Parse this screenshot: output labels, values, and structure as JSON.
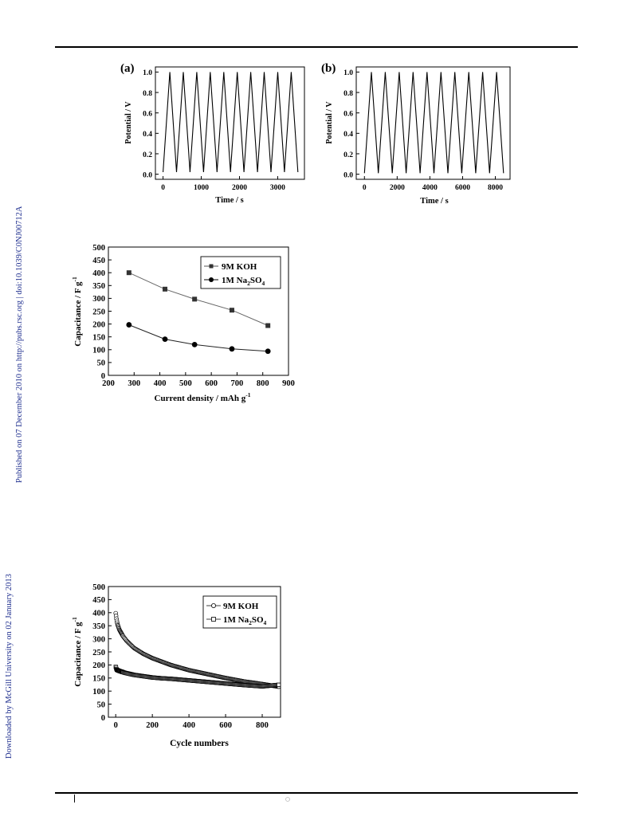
{
  "side_notice": {
    "line1": "Downloaded by McGill University on 02 January 2013",
    "line2": "Published on 07 December 2010 on http://pubs.rsc.org | doi:10.1039/C0NJ00712A"
  },
  "figures": {
    "gcd_a": {
      "panel_label": "(a)",
      "xlabel": "Time / s",
      "ylabel": "Potential / V",
      "xticks": [
        "0",
        "1000",
        "2000",
        "3000"
      ],
      "yticks": [
        "0.0",
        "0.2",
        "0.4",
        "0.6",
        "0.8",
        "1.0"
      ]
    },
    "gcd_b": {
      "panel_label": "(b)",
      "xlabel": "Time / s",
      "ylabel": "Potential / V",
      "xticks": [
        "0",
        "2000",
        "4000",
        "6000",
        "8000"
      ],
      "yticks": [
        "0.0",
        "0.2",
        "0.4",
        "0.6",
        "0.8",
        "1.0"
      ]
    },
    "rate": {
      "xlabel": "Current density / mAh g",
      "xlabel_sup": "-1",
      "ylabel": "Capacitance / F g",
      "ylabel_sup": "-1",
      "xticks": [
        "200",
        "300",
        "400",
        "500",
        "600",
        "700",
        "800",
        "900"
      ],
      "yticks": [
        "0",
        "50",
        "100",
        "150",
        "200",
        "250",
        "300",
        "350",
        "400",
        "450",
        "500"
      ],
      "legend": {
        "koh": "9M KOH",
        "naso_a": "1M Na",
        "naso_sub1": "2",
        "naso_b": "SO",
        "naso_sub2": "4"
      }
    },
    "cycle": {
      "xlabel": "Cycle numbers",
      "ylabel": "Capacitance / F g",
      "ylabel_sup": "-1",
      "xticks": [
        "0",
        "200",
        "400",
        "600",
        "800"
      ],
      "yticks": [
        "0",
        "50",
        "100",
        "150",
        "200",
        "250",
        "300",
        "350",
        "400",
        "450",
        "500"
      ],
      "legend": {
        "koh": "9M KOH",
        "naso_a": "1M Na",
        "naso_sub1": "2",
        "naso_b": "SO",
        "naso_sub2": "4"
      }
    }
  },
  "chart_data": [
    {
      "type": "line",
      "panel": "(a)",
      "xlabel": "Time / s",
      "ylabel": "Potential / V",
      "xlim": [
        -200,
        3700
      ],
      "ylim": [
        -0.05,
        1.05
      ],
      "cycles": 10,
      "t_start": 0,
      "t_end": 3530,
      "v_min": 0.02,
      "v_max": 1.0
    },
    {
      "type": "line",
      "panel": "(b)",
      "xlabel": "Time / s",
      "ylabel": "Potential / V",
      "xlim": [
        -500,
        8900
      ],
      "ylim": [
        -0.05,
        1.05
      ],
      "cycles": 10,
      "t_start": 0,
      "t_end": 8500,
      "v_min": 0.01,
      "v_max": 1.0
    },
    {
      "type": "line",
      "xlabel": "Current density / mAh g-1",
      "ylabel": "Capacitance / F g-1",
      "xlim": [
        200,
        900
      ],
      "ylim": [
        0,
        500
      ],
      "series": [
        {
          "name": "9M KOH",
          "marker": "square",
          "color": "#333333",
          "x": [
            280,
            420,
            535,
            680,
            820
          ],
          "y": [
            400,
            336,
            297,
            254,
            194
          ]
        },
        {
          "name": "1M Na2SO4",
          "marker": "circle",
          "color": "#000000",
          "x": [
            280,
            420,
            535,
            680,
            820
          ],
          "y": [
            197,
            141,
            120,
            103,
            94
          ]
        }
      ]
    },
    {
      "type": "scatter",
      "xlabel": "Cycle numbers",
      "ylabel": "Capacitance / F g-1",
      "xlim": [
        -40,
        900
      ],
      "ylim": [
        0,
        500
      ],
      "series": [
        {
          "name": "9M KOH",
          "marker": "open-circle",
          "x": [
            0,
            5,
            10,
            20,
            40,
            60,
            100,
            150,
            200,
            300,
            400,
            500,
            600,
            700,
            800,
            890
          ],
          "y": [
            398,
            372,
            355,
            335,
            310,
            292,
            265,
            243,
            226,
            200,
            180,
            165,
            150,
            137,
            127,
            117
          ]
        },
        {
          "name": "1M Na2SO4",
          "marker": "open-square",
          "x": [
            0,
            5,
            10,
            20,
            50,
            100,
            150,
            200,
            250,
            300,
            400,
            500,
            600,
            700,
            800,
            890
          ],
          "y": [
            193,
            182,
            180,
            177,
            170,
            162,
            157,
            152,
            149,
            147,
            141,
            135,
            129,
            123,
            118,
            124
          ]
        }
      ]
    }
  ]
}
